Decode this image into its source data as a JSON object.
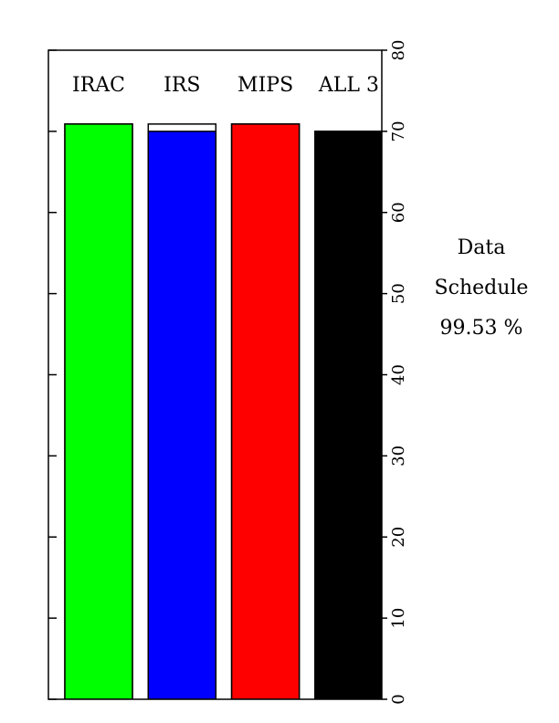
{
  "chart_data": {
    "type": "bar",
    "categories": [
      "IRAC",
      "IRS",
      "MIPS",
      "ALL 3"
    ],
    "values": [
      70.9,
      70.0,
      70.9,
      70.0
    ],
    "outline_values": [
      70.9,
      70.9,
      70.9,
      70.0
    ],
    "colors": [
      "#00ff00",
      "#0000ff",
      "#ff0000",
      "#000000"
    ],
    "ylim": [
      0,
      80
    ],
    "yticks": [
      0,
      10,
      20,
      30,
      40,
      50,
      60,
      70,
      80
    ],
    "annotation": [
      "Data",
      "Schedule",
      "99.53 %"
    ]
  }
}
